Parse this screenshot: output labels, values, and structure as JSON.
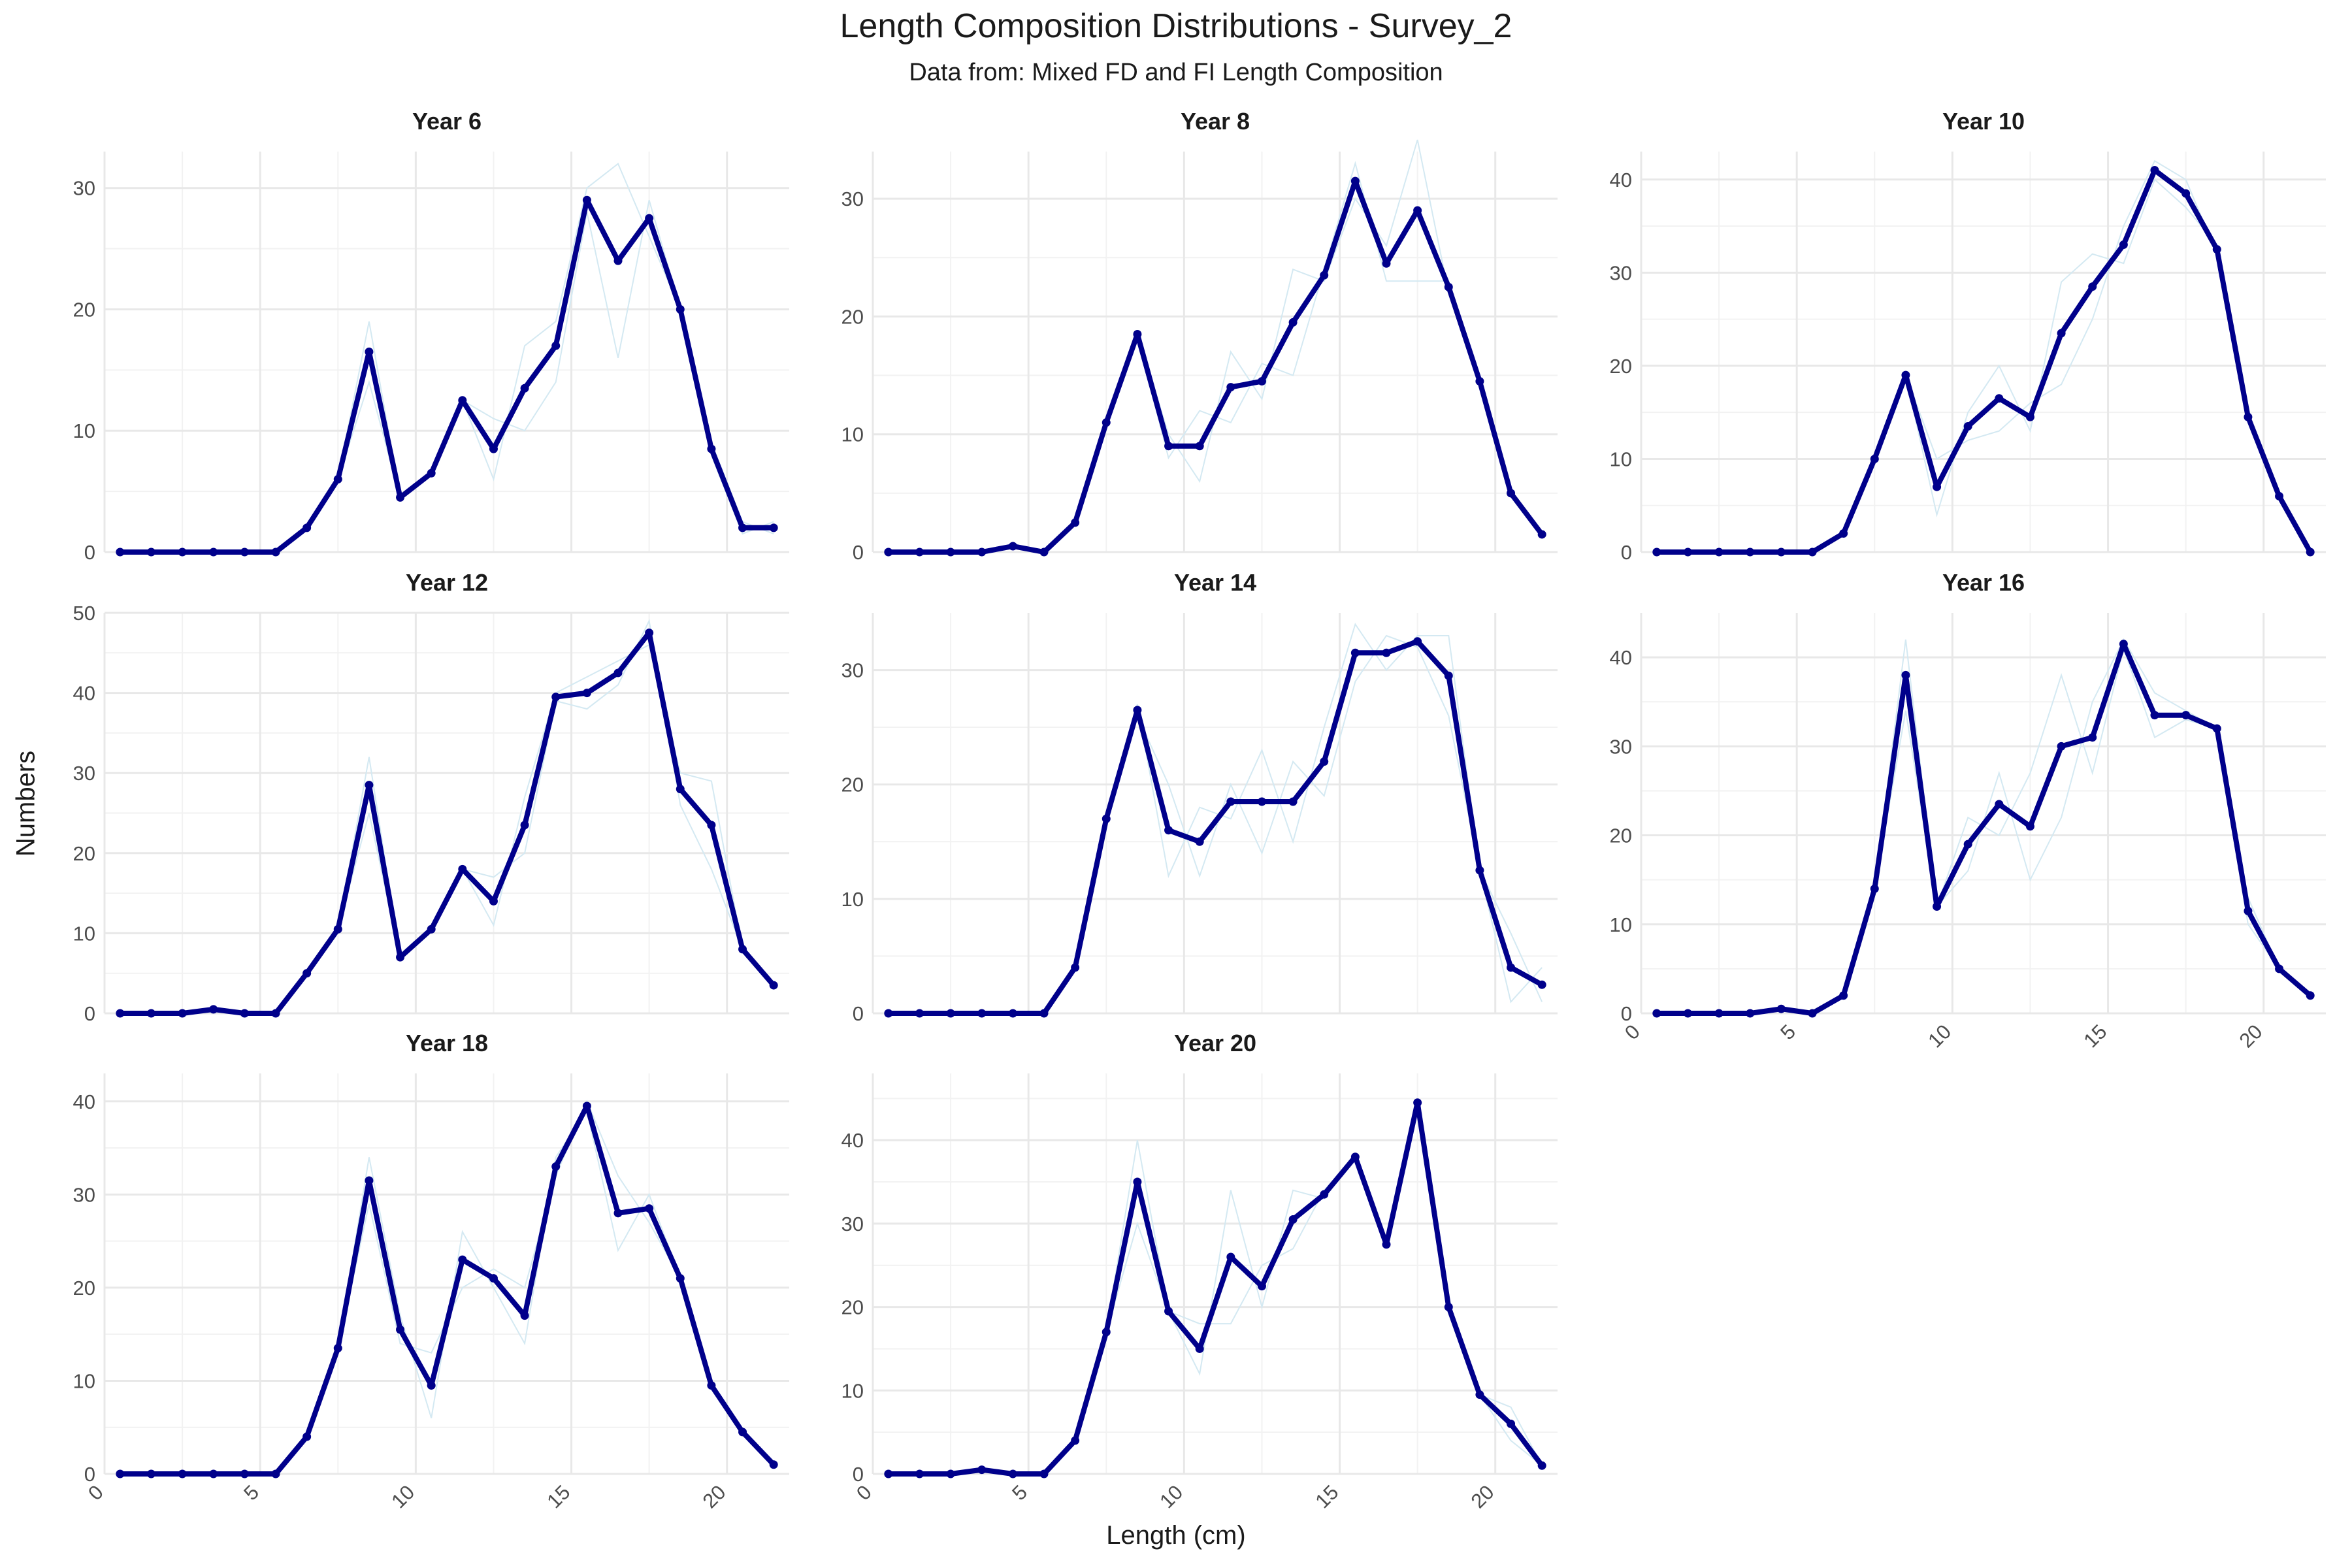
{
  "chart_data": {
    "type": "line",
    "title": "Length Composition Distributions - Survey_2",
    "subtitle": "Data from: Mixed FD and FI Length Composition",
    "xlabel": "Length (cm)",
    "ylabel": "Numbers",
    "x": [
      0.5,
      1.5,
      2.5,
      3.5,
      4.5,
      5.5,
      6.5,
      7.5,
      8.5,
      9.5,
      10.5,
      11.5,
      12.5,
      13.5,
      14.5,
      15.5,
      16.5,
      17.5,
      18.5,
      19.5,
      20.5,
      21.5
    ],
    "x_ticks": [
      0,
      5,
      10,
      15,
      20
    ],
    "xlim": [
      0,
      22
    ],
    "grid": true,
    "line_color": "#00008B",
    "faint_line_color": "#d4e9f2",
    "panels": [
      {
        "name": "Year 6",
        "ylim": [
          0,
          33
        ],
        "y_ticks": [
          0,
          10,
          20,
          30
        ],
        "values": [
          0,
          0,
          0,
          0,
          0,
          0,
          2,
          6,
          16.5,
          4.5,
          6.5,
          12.5,
          8.5,
          13.5,
          17,
          29,
          24,
          27.5,
          20,
          8.5,
          2,
          2
        ],
        "faint": [
          [
            0,
            0,
            0,
            0,
            0,
            0,
            2,
            6,
            19,
            4.5,
            6.5,
            12.5,
            6,
            17,
            19,
            30,
            32,
            26,
            20,
            8,
            1.5,
            2.5
          ],
          [
            0,
            0,
            0,
            0,
            0,
            0,
            2,
            6,
            14,
            4.5,
            6.5,
            12.5,
            11,
            10,
            14,
            28,
            16,
            29,
            20,
            9,
            2.5,
            1.5
          ]
        ]
      },
      {
        "name": "Year 8",
        "ylim": [
          0,
          34
        ],
        "y_ticks": [
          0,
          10,
          20,
          30
        ],
        "values": [
          0,
          0,
          0,
          0,
          0.5,
          0,
          2.5,
          11,
          18.5,
          9,
          9,
          14,
          14.5,
          19.5,
          23.5,
          31.5,
          24.5,
          29,
          22.5,
          14.5,
          5,
          1.5
        ],
        "faint": [
          [
            0,
            0,
            0,
            0,
            0.5,
            0,
            2.5,
            11,
            18.5,
            10,
            6,
            17,
            13,
            24,
            23,
            30,
            26,
            35,
            22,
            14.5,
            5,
            1.5
          ],
          [
            0,
            0,
            0,
            0,
            0.5,
            0,
            2.5,
            11,
            18.5,
            8,
            12,
            11,
            16,
            15,
            24,
            33,
            23,
            23,
            23,
            14.5,
            5,
            1.5
          ]
        ]
      },
      {
        "name": "Year 10",
        "ylim": [
          0,
          43
        ],
        "y_ticks": [
          0,
          10,
          20,
          30,
          40
        ],
        "values": [
          0,
          0,
          0,
          0,
          0,
          0,
          2,
          10,
          19,
          7,
          13.5,
          16.5,
          14.5,
          23.5,
          28.5,
          33,
          41,
          38.5,
          32.5,
          14.5,
          6,
          0
        ],
        "faint": [
          [
            0,
            0,
            0,
            0,
            0,
            0,
            2,
            10,
            19,
            4,
            15,
            20,
            13,
            29,
            32,
            31,
            40,
            37,
            33,
            15,
            6,
            0
          ],
          [
            0,
            0,
            0,
            0,
            0,
            0,
            2,
            10,
            19,
            10,
            12,
            13,
            16,
            18,
            25,
            35,
            42,
            40,
            32,
            14,
            6,
            0
          ]
        ]
      },
      {
        "name": "Year 12",
        "ylim": [
          0,
          50
        ],
        "y_ticks": [
          0,
          10,
          20,
          30,
          40,
          50
        ],
        "values": [
          0,
          0,
          0,
          0.5,
          0,
          0,
          5,
          10.5,
          28.5,
          7,
          10.5,
          18,
          14,
          23.5,
          39.5,
          40,
          42.5,
          47.5,
          28,
          23.5,
          8,
          3.5
        ],
        "faint": [
          [
            0,
            0,
            0,
            0.5,
            0,
            0,
            5,
            10.5,
            32,
            7,
            10.5,
            18,
            11,
            27,
            40,
            42,
            44,
            46,
            30,
            29,
            8,
            3.5
          ],
          [
            0,
            0,
            0,
            0.5,
            0,
            0,
            5,
            10.5,
            25,
            7,
            10.5,
            18,
            17,
            20,
            39,
            38,
            41,
            49,
            26,
            18,
            8,
            3.5
          ]
        ]
      },
      {
        "name": "Year 14",
        "ylim": [
          0,
          35
        ],
        "y_ticks": [
          0,
          10,
          20,
          30
        ],
        "values": [
          0,
          0,
          0,
          0,
          0,
          0,
          4,
          17,
          26.5,
          16,
          15,
          18.5,
          18.5,
          18.5,
          22,
          31.5,
          31.5,
          32.5,
          29.5,
          12.5,
          4,
          2.5
        ],
        "faint": [
          [
            0,
            0,
            0,
            0,
            0,
            0,
            4,
            17,
            27,
            12,
            18,
            17,
            23,
            15,
            25,
            34,
            30,
            33,
            33,
            12.5,
            1,
            4
          ],
          [
            0,
            0,
            0,
            0,
            0,
            0,
            4,
            17,
            26,
            20,
            12,
            20,
            14,
            22,
            19,
            29,
            33,
            32,
            26,
            12.5,
            7,
            1
          ]
        ]
      },
      {
        "name": "Year 16",
        "ylim": [
          0,
          45
        ],
        "y_ticks": [
          0,
          10,
          20,
          30,
          40
        ],
        "values": [
          0,
          0,
          0,
          0,
          0.5,
          0,
          2,
          14,
          38,
          12,
          19,
          23.5,
          21,
          30,
          31,
          41.5,
          33.5,
          33.5,
          32,
          11.5,
          5,
          2
        ],
        "faint": [
          [
            0,
            0,
            0,
            0,
            0.5,
            0,
            2,
            14,
            42,
            12,
            22,
            20,
            27,
            38,
            27,
            41,
            31,
            33,
            32,
            10,
            5,
            2
          ],
          [
            0,
            0,
            0,
            0,
            0.5,
            0,
            2,
            14,
            34,
            12,
            16,
            27,
            15,
            22,
            35,
            42,
            36,
            34,
            32,
            13,
            5,
            2
          ]
        ]
      },
      {
        "name": "Year 18",
        "ylim": [
          0,
          43
        ],
        "y_ticks": [
          0,
          10,
          20,
          30,
          40
        ],
        "values": [
          0,
          0,
          0,
          0,
          0,
          0,
          4,
          13.5,
          31.5,
          15.5,
          9.5,
          23,
          21,
          17,
          33,
          39.5,
          28,
          28.5,
          21,
          9.5,
          4.5,
          1
        ],
        "faint": [
          [
            0,
            0,
            0,
            0,
            0,
            0,
            4,
            13.5,
            34,
            17,
            6,
            26,
            20,
            14,
            34,
            39,
            24,
            30,
            21,
            9.5,
            4.5,
            1
          ],
          [
            0,
            0,
            0,
            0,
            0,
            0,
            4,
            13.5,
            29,
            14,
            13,
            20,
            22,
            20,
            32,
            40,
            32,
            27,
            21,
            9.5,
            4.5,
            1
          ]
        ]
      },
      {
        "name": "Year 20",
        "ylim": [
          0,
          48
        ],
        "y_ticks": [
          0,
          10,
          20,
          30,
          40
        ],
        "values": [
          0,
          0,
          0,
          0.5,
          0,
          0,
          4,
          17,
          35,
          19.5,
          15,
          26,
          22.5,
          30.5,
          33.5,
          38,
          27.5,
          44.5,
          20,
          9.5,
          6,
          1
        ],
        "faint": [
          [
            0,
            0,
            0,
            0.5,
            0,
            0,
            4,
            17,
            40,
            19.5,
            12,
            34,
            20,
            34,
            33,
            38,
            27.5,
            44.5,
            20,
            9.5,
            8,
            1
          ],
          [
            0,
            0,
            0,
            0.5,
            0,
            0,
            4,
            17,
            30,
            19.5,
            18,
            18,
            25,
            27,
            34,
            38,
            27.5,
            44.5,
            20,
            9.5,
            4,
            1
          ]
        ]
      }
    ]
  }
}
